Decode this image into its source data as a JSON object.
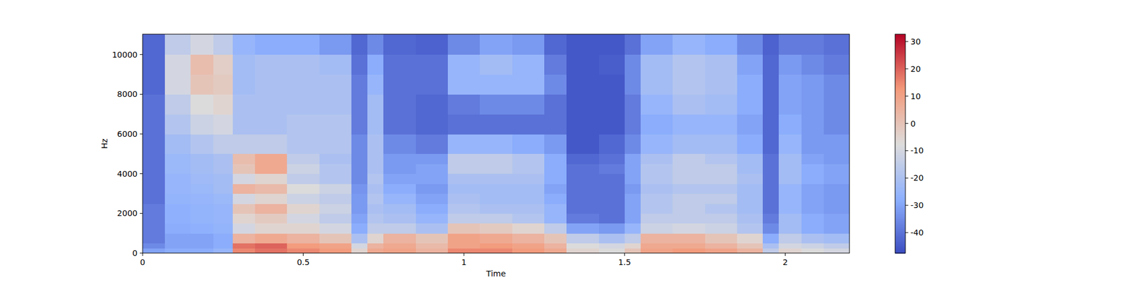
{
  "chart_data": {
    "type": "heatmap",
    "x_label": "Time",
    "y_label": "Hz",
    "x_edges": [
      0,
      0.07,
      0.15,
      0.22,
      0.28,
      0.35,
      0.45,
      0.55,
      0.65,
      0.7,
      0.75,
      0.85,
      0.95,
      1.05,
      1.15,
      1.25,
      1.32,
      1.42,
      1.5,
      1.55,
      1.65,
      1.75,
      1.85,
      1.93,
      1.98,
      2.05,
      2.12,
      2.2
    ],
    "y_edges": [
      0,
      250,
      500,
      1000,
      1500,
      2000,
      2500,
      3000,
      3500,
      4000,
      4500,
      5000,
      6000,
      7000,
      8000,
      9000,
      10000,
      11025
    ],
    "values": [
      [
        -30,
        -35,
        -38,
        -38,
        -38,
        -38,
        -40,
        -40,
        -40,
        -40,
        -40,
        -40,
        -40,
        -40,
        -42,
        -42,
        -42
      ],
      [
        -28,
        -30,
        -30,
        -28,
        -27,
        -27,
        -26,
        -25,
        -25,
        -24,
        -24,
        -22,
        -18,
        -15,
        -10,
        -10,
        -15
      ],
      [
        -28,
        -30,
        -30,
        -27,
        -26,
        -26,
        -25,
        -24,
        -23,
        -22,
        -22,
        -18,
        -12,
        -8,
        0,
        2,
        -10
      ],
      [
        -25,
        -28,
        -28,
        -26,
        -25,
        -25,
        -24,
        -22,
        -22,
        -20,
        -20,
        -15,
        -10,
        -5,
        -2,
        -3,
        -15
      ],
      [
        15,
        18,
        5,
        -10,
        -5,
        0,
        -10,
        5,
        -10,
        0,
        2,
        -15,
        -20,
        -20,
        -22,
        -22,
        -25
      ],
      [
        18,
        20,
        8,
        -5,
        -2,
        5,
        -5,
        3,
        -5,
        8,
        8,
        -15,
        -20,
        -20,
        -20,
        -20,
        -28
      ],
      [
        15,
        12,
        5,
        -5,
        -10,
        -5,
        -12,
        -8,
        -15,
        -12,
        -15,
        -18,
        -18,
        -20,
        -20,
        -20,
        -28
      ],
      [
        12,
        10,
        0,
        -10,
        -15,
        -12,
        -15,
        -12,
        -18,
        -18,
        -20,
        -18,
        -18,
        -20,
        -20,
        -22,
        -32
      ],
      [
        -5,
        -10,
        -20,
        -28,
        -30,
        -32,
        -32,
        -33,
        -35,
        -35,
        -35,
        -35,
        -38,
        -38,
        -38,
        -40,
        -42
      ],
      [
        8,
        5,
        -5,
        -15,
        -18,
        -20,
        -18,
        -20,
        -18,
        -20,
        -20,
        -20,
        -22,
        -22,
        -25,
        -28,
        -35
      ],
      [
        10,
        8,
        5,
        -15,
        -20,
        -22,
        -25,
        -28,
        -30,
        -32,
        -32,
        -35,
        -40,
        -40,
        -40,
        -40,
        -42
      ],
      [
        5,
        3,
        0,
        -20,
        -25,
        -28,
        -30,
        -32,
        -30,
        -30,
        -32,
        -38,
        -42,
        -42,
        -40,
        -40,
        -43
      ],
      [
        15,
        10,
        10,
        0,
        -15,
        -18,
        -20,
        -22,
        -20,
        -15,
        -15,
        -25,
        -40,
        -38,
        -25,
        -25,
        -35
      ],
      [
        15,
        12,
        8,
        -2,
        -15,
        -20,
        -22,
        -22,
        -20,
        -15,
        -15,
        -25,
        -40,
        -35,
        -25,
        -22,
        -30
      ],
      [
        12,
        10,
        5,
        -5,
        -18,
        -20,
        -22,
        -22,
        -20,
        -18,
        -18,
        -28,
        -40,
        -35,
        -25,
        -25,
        -32
      ],
      [
        8,
        5,
        0,
        -15,
        -25,
        -25,
        -28,
        -30,
        -28,
        -28,
        -28,
        -32,
        -40,
        -40,
        -35,
        -38,
        -42
      ],
      [
        -5,
        -8,
        -15,
        -30,
        -38,
        -40,
        -40,
        -40,
        -40,
        -40,
        -42,
        -45,
        -45,
        -45,
        -45,
        -45,
        -45
      ],
      [
        -8,
        -10,
        -20,
        -32,
        -40,
        -40,
        -40,
        -40,
        -40,
        -38,
        -40,
        -42,
        -45,
        -45,
        -45,
        -44,
        -45
      ],
      [
        0,
        -5,
        -15,
        -25,
        -30,
        -30,
        -30,
        -32,
        -30,
        -30,
        -30,
        -35,
        -38,
        -38,
        -35,
        -35,
        -40
      ],
      [
        10,
        8,
        5,
        -12,
        -15,
        -18,
        -18,
        -20,
        -18,
        -18,
        -20,
        -25,
        -28,
        -25,
        -22,
        -22,
        -30
      ],
      [
        12,
        8,
        5,
        -10,
        -15,
        -15,
        -15,
        -18,
        -15,
        -15,
        -15,
        -22,
        -25,
        -20,
        -18,
        -18,
        -25
      ],
      [
        10,
        5,
        0,
        -12,
        -15,
        -18,
        -15,
        -18,
        -15,
        -15,
        -18,
        -22,
        -25,
        -22,
        -20,
        -20,
        -28
      ],
      [
        5,
        0,
        -5,
        -18,
        -20,
        -22,
        -22,
        -22,
        -20,
        -22,
        -22,
        -28,
        -30,
        -28,
        -28,
        -30,
        -35
      ],
      [
        -15,
        -20,
        -28,
        -35,
        -38,
        -40,
        -40,
        -40,
        -40,
        -40,
        -40,
        -42,
        -42,
        -42,
        -42,
        -42,
        -43
      ],
      [
        -5,
        -10,
        -15,
        -22,
        -22,
        -25,
        -25,
        -25,
        -22,
        -22,
        -22,
        -25,
        -28,
        -30,
        -30,
        -32,
        -38
      ],
      [
        -8,
        -12,
        -20,
        -28,
        -28,
        -30,
        -30,
        -30,
        -28,
        -28,
        -30,
        -32,
        -32,
        -32,
        -32,
        -35,
        -38
      ],
      [
        -10,
        -15,
        -22,
        -30,
        -30,
        -32,
        -32,
        -32,
        -30,
        -30,
        -32,
        -32,
        -35,
        -35,
        -35,
        -38,
        -40
      ]
    ],
    "xlim": [
      0,
      2.2
    ],
    "ylim": [
      0,
      11025
    ],
    "xticks": [
      0,
      0.5,
      1,
      1.5,
      2
    ],
    "yticks": [
      0,
      2000,
      4000,
      6000,
      8000,
      10000
    ],
    "colorbar": {
      "range": [
        -47.5,
        32.7
      ],
      "ticks": [
        -40,
        -30,
        -20,
        -10,
        0,
        10,
        20,
        30
      ]
    }
  }
}
